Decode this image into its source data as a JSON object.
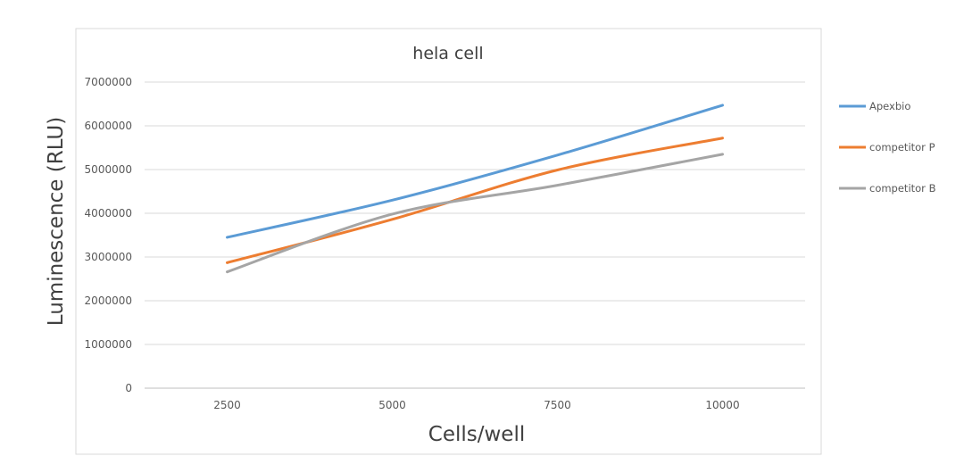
{
  "chart_data": {
    "type": "line",
    "title": "hela cell",
    "xlabel": "Cells/well",
    "ylabel": "Luminescence (RLU)",
    "categories": [
      "2500",
      "5000",
      "7500",
      "10000"
    ],
    "ylim": [
      0,
      7000000
    ],
    "yticks": [
      "0",
      "1000000",
      "2000000",
      "3000000",
      "4000000",
      "5000000",
      "6000000",
      "7000000"
    ],
    "grid": true,
    "smooth": true,
    "legend_position": "right",
    "series": [
      {
        "name": "Apexbio",
        "color": "#5b9bd5",
        "values": [
          3450000,
          4300000,
          5330000,
          6470000
        ]
      },
      {
        "name": "competitor P",
        "color": "#ed7d31",
        "values": [
          2870000,
          3860000,
          4990000,
          5720000
        ]
      },
      {
        "name": "competitor B",
        "color": "#a5a5a5",
        "values": [
          2660000,
          3980000,
          4640000,
          5350000
        ]
      }
    ]
  }
}
